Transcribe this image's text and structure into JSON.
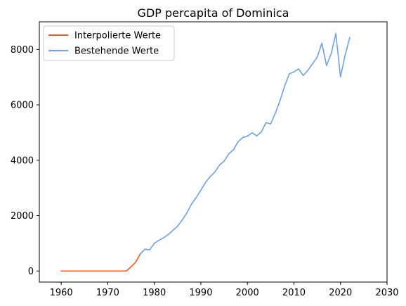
{
  "chart_data": {
    "type": "line",
    "title": "GDP percapita of Dominica",
    "xlabel": "",
    "ylabel": "",
    "xlim": [
      1955.3,
      2030
    ],
    "ylim": [
      -400,
      9000
    ],
    "xticks": [
      1960,
      1970,
      1980,
      1990,
      2000,
      2010,
      2020,
      2030
    ],
    "yticks": [
      0,
      2000,
      4000,
      6000,
      8000
    ],
    "grid": false,
    "legend_position": "top-left",
    "series": [
      {
        "name": "Interpolierte Werte",
        "color": "#f05a1e",
        "x": [
          1960,
          1961,
          1962,
          1963,
          1964,
          1965,
          1966,
          1967,
          1968,
          1969,
          1970,
          1971,
          1972,
          1973,
          1974,
          1975,
          1976,
          1977
        ],
        "y": [
          0,
          0,
          0,
          0,
          0,
          0,
          0,
          0,
          0,
          0,
          0,
          0,
          0,
          0,
          0,
          150,
          320,
          620
        ]
      },
      {
        "name": "Bestehende Werte",
        "color": "#6fa0e8",
        "x": [
          1977,
          1978,
          1979,
          1980,
          1981,
          1982,
          1983,
          1984,
          1985,
          1986,
          1987,
          1988,
          1989,
          1990,
          1991,
          1992,
          1993,
          1994,
          1995,
          1996,
          1997,
          1998,
          1999,
          2000,
          2001,
          2002,
          2003,
          2004,
          2005,
          2006,
          2007,
          2008,
          2009,
          2010,
          2011,
          2012,
          2013,
          2014,
          2015,
          2016,
          2017,
          2018,
          2019,
          2020,
          2021,
          2022
        ],
        "y": [
          620,
          790,
          760,
          1000,
          1110,
          1200,
          1320,
          1470,
          1620,
          1840,
          2100,
          2420,
          2650,
          2920,
          3200,
          3410,
          3570,
          3820,
          3970,
          4230,
          4380,
          4670,
          4820,
          4870,
          4990,
          4880,
          5020,
          5360,
          5310,
          5700,
          6150,
          6680,
          7120,
          7190,
          7300,
          7060,
          7250,
          7490,
          7720,
          8230,
          7420,
          7850,
          8580,
          7010,
          7800,
          8430
        ]
      }
    ]
  }
}
